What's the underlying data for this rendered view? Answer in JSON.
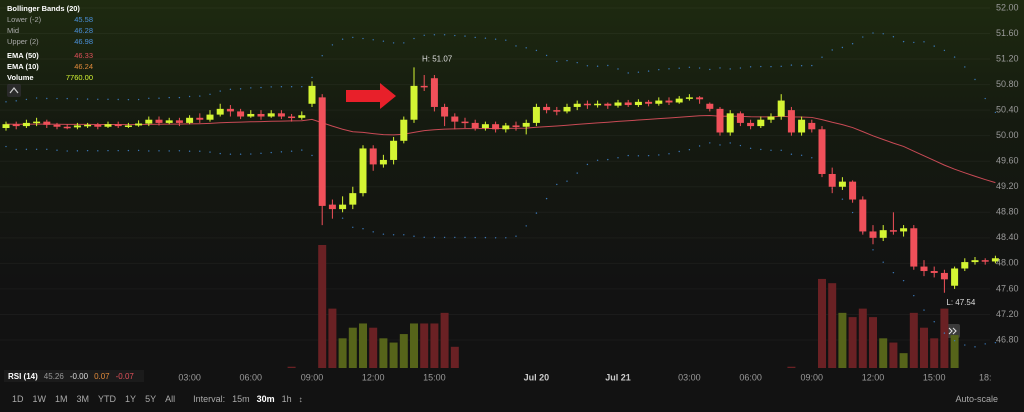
{
  "legend": {
    "title": "Bollinger Bands (20)",
    "items": [
      {
        "name": "Lower (-2)",
        "value": 45.58,
        "color": "#4a90d9"
      },
      {
        "name": "Mid",
        "value": 46.28,
        "color": "#4a90d9"
      },
      {
        "name": "Upper (2)",
        "value": 46.98,
        "color": "#4a90d9"
      },
      {
        "name": "EMA (50)",
        "value": 46.33,
        "color": "#e0505a"
      },
      {
        "name": "EMA (10)",
        "value": 46.24,
        "color": "#e08a3a"
      },
      {
        "name": "Volume",
        "value": 7760,
        "label": "7760.00",
        "color": "#d4f533"
      }
    ]
  },
  "chart_data": {
    "type": "candlestick",
    "categories": [
      null,
      null,
      null,
      null,
      null,
      null,
      null,
      null,
      null,
      null,
      null,
      null,
      null,
      null,
      null,
      null,
      null,
      null,
      "03:00",
      null,
      null,
      null,
      null,
      null,
      "06:00",
      null,
      null,
      null,
      null,
      null,
      "09:00",
      null,
      null,
      null,
      null,
      null,
      "12:00",
      null,
      null,
      null,
      null,
      null,
      "15:00",
      null,
      null,
      null,
      null,
      null,
      null,
      null,
      null,
      null,
      "Jul 20",
      null,
      null,
      null,
      null,
      null,
      null,
      null,
      "Jul 21",
      null,
      null,
      null,
      null,
      null,
      null,
      "03:00",
      null,
      null,
      null,
      null,
      null,
      "06:00",
      null,
      null,
      null,
      null,
      null,
      "09:00",
      null,
      null,
      null,
      null,
      null,
      "12:00",
      null,
      null,
      null,
      null,
      null,
      "15:00",
      null,
      null,
      null,
      null,
      "18:",
      null
    ],
    "open": [
      50.12,
      50.18,
      50.15,
      50.2,
      50.22,
      50.17,
      50.14,
      50.13,
      50.16,
      50.17,
      50.14,
      50.18,
      50.15,
      50.16,
      50.19,
      50.25,
      50.2,
      50.24,
      50.2,
      50.28,
      50.25,
      50.33,
      50.42,
      50.38,
      50.3,
      50.34,
      50.3,
      50.35,
      50.3,
      50.28,
      50.5,
      50.6,
      48.92,
      48.85,
      48.92,
      49.1,
      49.8,
      49.55,
      49.62,
      49.92,
      50.25,
      50.78,
      50.9,
      50.45,
      50.3,
      50.22,
      50.2,
      50.12,
      50.18,
      50.1,
      50.16,
      50.14,
      50.2,
      50.45,
      50.4,
      50.38,
      50.45,
      50.5,
      50.48,
      50.5,
      50.47,
      50.52,
      50.48,
      50.53,
      50.5,
      50.55,
      50.52,
      50.58,
      50.6,
      50.5,
      50.42,
      50.05,
      50.35,
      50.2,
      50.15,
      50.25,
      50.3,
      50.4,
      50.05,
      50.2,
      50.1,
      49.4,
      49.2,
      49.28,
      49.0,
      48.5,
      48.4,
      48.52,
      48.5,
      48.55,
      47.95,
      47.88,
      47.85,
      47.65,
      47.92,
      48.02,
      48.05,
      48.03
    ],
    "high": [
      50.22,
      50.22,
      50.25,
      50.28,
      50.25,
      50.2,
      50.18,
      50.2,
      50.2,
      50.2,
      50.22,
      50.22,
      50.2,
      50.24,
      50.3,
      50.3,
      50.28,
      50.28,
      50.32,
      50.35,
      50.4,
      50.5,
      50.48,
      50.42,
      50.4,
      50.4,
      50.4,
      50.4,
      50.34,
      50.38,
      50.85,
      50.65,
      49.0,
      49.05,
      49.2,
      49.85,
      49.85,
      49.7,
      49.98,
      50.3,
      51.07,
      50.95,
      50.95,
      50.5,
      50.35,
      50.28,
      50.25,
      50.22,
      50.22,
      50.2,
      50.22,
      50.25,
      50.5,
      50.5,
      50.45,
      50.5,
      50.55,
      50.55,
      50.55,
      50.52,
      50.56,
      50.56,
      50.57,
      50.56,
      50.6,
      50.6,
      50.62,
      50.65,
      50.62,
      50.52,
      50.45,
      50.4,
      50.38,
      50.25,
      50.3,
      50.35,
      50.65,
      50.45,
      50.3,
      50.25,
      50.15,
      49.5,
      49.35,
      49.3,
      49.05,
      48.6,
      48.6,
      48.8,
      48.6,
      48.6,
      48.05,
      47.95,
      47.9,
      47.95,
      48.08,
      48.1,
      48.08,
      48.12
    ],
    "low": [
      50.08,
      50.1,
      50.12,
      50.15,
      50.12,
      50.1,
      50.1,
      50.1,
      50.12,
      50.1,
      50.12,
      50.12,
      50.12,
      50.14,
      50.15,
      50.16,
      50.18,
      50.15,
      50.18,
      50.2,
      50.22,
      50.3,
      50.3,
      50.26,
      50.28,
      50.25,
      50.28,
      50.26,
      50.22,
      50.25,
      50.45,
      48.6,
      48.7,
      48.8,
      48.85,
      49.05,
      49.45,
      49.5,
      49.55,
      49.88,
      50.2,
      50.7,
      50.38,
      50.15,
      50.1,
      50.12,
      50.08,
      50.08,
      50.05,
      50.05,
      50.08,
      50.02,
      50.15,
      50.35,
      50.32,
      50.35,
      50.4,
      50.42,
      50.44,
      50.42,
      50.44,
      50.45,
      50.45,
      50.46,
      50.47,
      50.48,
      50.5,
      50.55,
      50.5,
      50.38,
      50.0,
      50.0,
      50.15,
      50.1,
      50.12,
      50.2,
      50.25,
      50.0,
      50.0,
      50.05,
      49.35,
      49.1,
      49.15,
      48.95,
      48.45,
      48.3,
      48.35,
      48.45,
      48.42,
      47.9,
      47.8,
      47.78,
      47.54,
      47.6,
      47.88,
      47.98,
      47.98,
      48.0
    ],
    "close": [
      50.18,
      50.15,
      50.2,
      50.22,
      50.17,
      50.14,
      50.13,
      50.16,
      50.17,
      50.14,
      50.18,
      50.15,
      50.16,
      50.19,
      50.25,
      50.2,
      50.24,
      50.2,
      50.28,
      50.25,
      50.33,
      50.42,
      50.38,
      50.3,
      50.34,
      50.3,
      50.35,
      50.3,
      50.28,
      50.32,
      50.78,
      48.9,
      48.85,
      48.92,
      49.1,
      49.8,
      49.55,
      49.62,
      49.92,
      50.25,
      50.78,
      50.76,
      50.45,
      50.3,
      50.22,
      50.2,
      50.12,
      50.18,
      50.1,
      50.16,
      50.14,
      50.2,
      50.45,
      50.4,
      50.38,
      50.45,
      50.5,
      50.48,
      50.5,
      50.47,
      50.52,
      50.48,
      50.53,
      50.5,
      50.55,
      50.52,
      50.58,
      50.6,
      50.57,
      50.42,
      50.05,
      50.35,
      50.2,
      50.15,
      50.25,
      50.3,
      50.55,
      50.05,
      50.25,
      50.1,
      49.4,
      49.2,
      49.28,
      49.0,
      48.5,
      48.4,
      48.52,
      48.5,
      48.55,
      47.95,
      47.88,
      47.85,
      47.75,
      47.92,
      48.02,
      48.05,
      48.03,
      48.08
    ],
    "volume": [
      0,
      0,
      0,
      0,
      0,
      0,
      0,
      0,
      0,
      0,
      0,
      0,
      0,
      0,
      0,
      0,
      0,
      0,
      0,
      0,
      0,
      0,
      0,
      0,
      0,
      0,
      0,
      0,
      300,
      0,
      0,
      29000,
      14000,
      7000,
      9500,
      10500,
      9500,
      7000,
      6000,
      8000,
      10500,
      10500,
      10500,
      13000,
      5000,
      0,
      0,
      0,
      0,
      0,
      0,
      0,
      0,
      0,
      0,
      0,
      0,
      0,
      0,
      0,
      0,
      0,
      0,
      0,
      0,
      0,
      0,
      0,
      0,
      0,
      0,
      0,
      0,
      0,
      0,
      0,
      0,
      300,
      0,
      0,
      21000,
      20000,
      13000,
      12000,
      14000,
      12000,
      7000,
      6000,
      3500,
      13000,
      9500,
      7000,
      14000,
      7760,
      0,
      0,
      0,
      0
    ],
    "up_color": "#d4f533",
    "down_color": "#f0505a",
    "up_volume_color": "#56641a",
    "down_volume_color": "#6a2124",
    "ylim": [
      46.33,
      52.125
    ],
    "yticks": [
      {
        "value": 52,
        "label": "52.00"
      },
      {
        "value": 51.6,
        "label": "51.60"
      },
      {
        "value": 51.2,
        "label": "51.20"
      },
      {
        "value": 50.8,
        "label": "50.80"
      },
      {
        "value": 50.4,
        "label": "50.40"
      },
      {
        "value": 50,
        "label": "50.00"
      },
      {
        "value": 49.6,
        "label": "49.60"
      },
      {
        "value": 49.2,
        "label": "49.20"
      },
      {
        "value": 48.8,
        "label": "48.80"
      },
      {
        "value": 48.4,
        "label": "48.40"
      },
      {
        "value": 48,
        "label": "48.00"
      },
      {
        "value": 47.6,
        "label": "47.60"
      },
      {
        "value": 47.2,
        "label": "47.20"
      },
      {
        "value": 46.8,
        "label": "46.80"
      }
    ],
    "grid": true,
    "annotations": [
      {
        "value": 51.07,
        "label": "H: 51.07"
      },
      {
        "value": 47.54,
        "label": "L: 47.54"
      }
    ]
  },
  "rsi": {
    "label": "RSI (14)",
    "values": [
      {
        "value": 45.26,
        "color": "#999"
      },
      {
        "value": -0.0,
        "label": "-0.00",
        "color": "#ddd"
      },
      {
        "value": 0.07,
        "color": "#e08a3a"
      },
      {
        "value": -0.07,
        "color": "#e0505a"
      }
    ]
  },
  "toolbar": {
    "ranges": [
      "1D",
      "1W",
      "1M",
      "3M",
      "YTD",
      "1Y",
      "5Y",
      "All"
    ],
    "interval_label": "Interval:",
    "intervals": [
      "15m",
      "30m",
      "1h"
    ],
    "active_interval": 1,
    "auto_scale": "Auto-scale"
  }
}
